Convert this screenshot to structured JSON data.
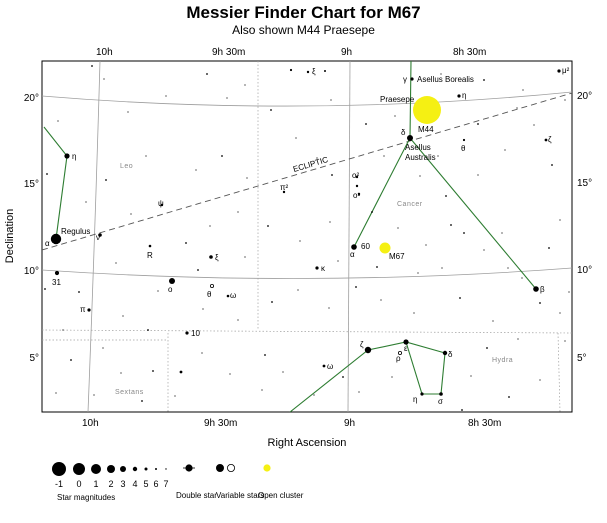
{
  "title": "Messier Finder Chart for M67",
  "subtitle": "Also shown M44 Praesepe",
  "chart_data": {
    "type": "scatter",
    "xlabel": "Right Ascension",
    "ylabel": "Declination",
    "x_ticks": [
      "10h",
      "9h 30m",
      "9h",
      "8h 30m"
    ],
    "y_ticks": [
      "20°",
      "15°",
      "10°",
      "5°"
    ],
    "ecliptic_label": "ECLIPTIC",
    "constellations": [
      "Leo",
      "Cancer",
      "Hydra",
      "Sextans"
    ],
    "objects": [
      {
        "name": "M67",
        "type": "open cluster"
      },
      {
        "name": "M44",
        "label2": "Praesepe",
        "type": "open cluster"
      }
    ],
    "star_labels": [
      "Regulus",
      "α",
      "η",
      "ν",
      "31",
      "π",
      "R",
      "ξ",
      "ο",
      "ψ",
      "π²",
      "θ",
      "ω",
      "10",
      "κ",
      "ω",
      "ξ",
      "α",
      "60",
      "ο²",
      "ο¹",
      "γ",
      "Asellus Borealis",
      "η",
      "δ",
      "Asellus Australis",
      "θ",
      "ζ",
      "β",
      "μ²",
      "ζ",
      "ε",
      "ρ",
      "δ",
      "η",
      "σ"
    ],
    "legend": {
      "magnitudes_title": "Star magnitudes",
      "magnitudes": [
        "-1",
        "0",
        "1",
        "2",
        "3",
        "4",
        "5",
        "6",
        "7"
      ],
      "double_star": "Double star",
      "variable_stars": "Variable stars",
      "open_cluster": "Open cluster"
    },
    "colors": {
      "constellation_lines": "#2e7d32",
      "open_cluster": "#f5f013",
      "grid": "#9e9e9e",
      "boundaries": "#a0a0a0"
    }
  }
}
